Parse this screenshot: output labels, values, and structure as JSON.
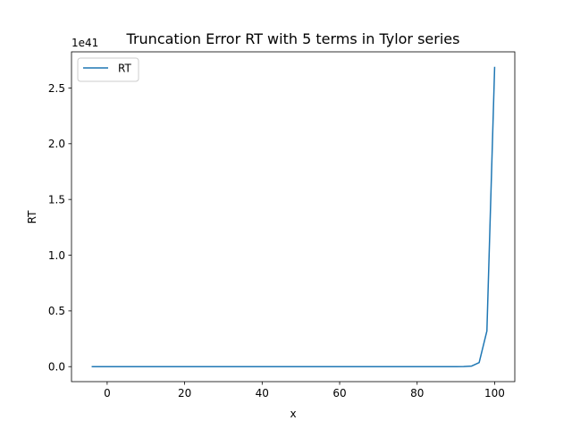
{
  "chart_data": {
    "type": "line",
    "title": "Truncation Error RT with 5 terms in Tylor series",
    "xlabel": "x",
    "ylabel": "RT",
    "offset_text": "1e41",
    "xlim": [
      -9.2,
      105.2
    ],
    "ylim": [
      -0.1345,
      2.8245
    ],
    "x_ticks": [
      0,
      20,
      40,
      60,
      80,
      100
    ],
    "x_tick_labels": [
      "0",
      "20",
      "40",
      "60",
      "80",
      "100"
    ],
    "y_ticks": [
      0.0,
      0.5,
      1.0,
      1.5,
      2.0,
      2.5
    ],
    "y_tick_labels": [
      "0.0",
      "0.5",
      "1.0",
      "1.5",
      "2.0",
      "2.5"
    ],
    "grid": false,
    "legend_position": "upper-left",
    "series": [
      {
        "name": "RT",
        "color": "#1f77b4",
        "x": [
          -4,
          -2,
          0,
          2,
          4,
          6,
          8,
          10,
          12,
          14,
          16,
          18,
          20,
          22,
          24,
          26,
          28,
          30,
          32,
          34,
          36,
          38,
          40,
          42,
          44,
          46,
          48,
          50,
          52,
          54,
          56,
          58,
          60,
          62,
          64,
          66,
          68,
          70,
          72,
          74,
          76,
          78,
          80,
          82,
          84,
          86,
          88,
          90,
          92,
          94,
          96,
          98,
          100
        ],
        "y": [
          0,
          0,
          0,
          0,
          0,
          0,
          0,
          0,
          0,
          0,
          0,
          0,
          0,
          0,
          0,
          0,
          0,
          0,
          0,
          0,
          0,
          0,
          0,
          0,
          0,
          0,
          0,
          0,
          0,
          0,
          0,
          0,
          0,
          0,
          0,
          0,
          0,
          0,
          0,
          0,
          0,
          0,
          0,
          0,
          0,
          0,
          0,
          0,
          0.0006,
          0.0045,
          0.036,
          0.32,
          2.69
        ]
      }
    ]
  }
}
